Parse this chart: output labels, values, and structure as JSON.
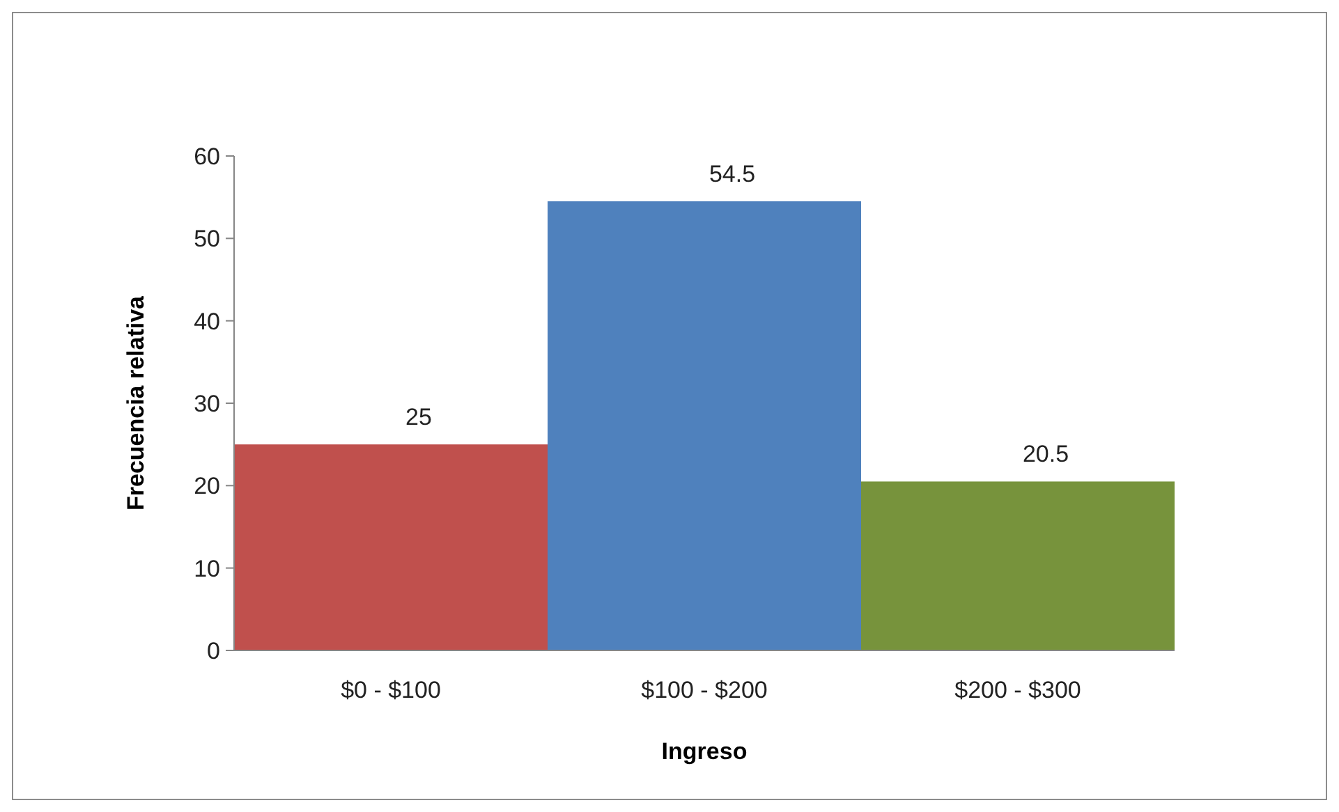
{
  "chart_data": {
    "type": "bar",
    "xlabel": "Ingreso",
    "ylabel": "Frecuencia relativa",
    "categories": [
      "$0 - $100",
      "$100 - $200",
      "$200 - $300"
    ],
    "values": [
      25,
      54.5,
      20.5
    ],
    "colors": [
      "#c0504d",
      "#4f81bd",
      "#77933c"
    ],
    "ylim": [
      0,
      60
    ],
    "yticks": [
      0,
      10,
      20,
      30,
      40,
      50,
      60
    ],
    "data_labels": true
  }
}
